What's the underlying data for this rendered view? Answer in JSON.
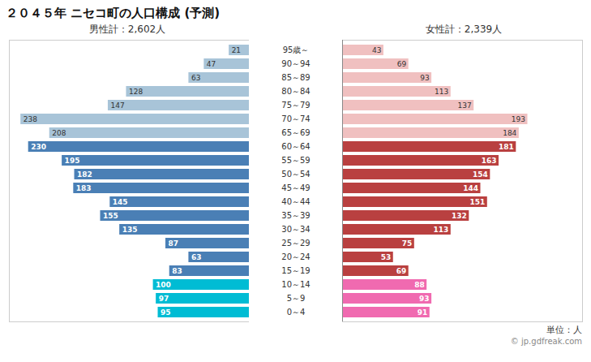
{
  "chart_data": {
    "type": "bar",
    "orientation": "horizontal",
    "title": "２０４５年 ニセコ町の人口構成 (予測)",
    "categories": [
      "95歳～",
      "90～94",
      "85～89",
      "80～84",
      "75～79",
      "70～74",
      "65～69",
      "60～64",
      "55～59",
      "50～54",
      "45～49",
      "40～44",
      "35～39",
      "30～34",
      "25～29",
      "20～24",
      "15～19",
      "10～14",
      "5～9",
      "0～4"
    ],
    "series": [
      {
        "name": "男性計：2,602人",
        "colors": [
          "#a8c4d8",
          "#a8c4d8",
          "#a8c4d8",
          "#a8c4d8",
          "#a8c4d8",
          "#a8c4d8",
          "#a8c4d8",
          "#4a7fb5",
          "#4a7fb5",
          "#4a7fb5",
          "#4a7fb5",
          "#4a7fb5",
          "#4a7fb5",
          "#4a7fb5",
          "#4a7fb5",
          "#4a7fb5",
          "#4a7fb5",
          "#00bcd4",
          "#00bcd4",
          "#00bcd4"
        ],
        "values": [
          21,
          47,
          63,
          128,
          147,
          238,
          208,
          230,
          195,
          182,
          183,
          145,
          155,
          135,
          87,
          63,
          83,
          100,
          97,
          95
        ]
      },
      {
        "name": "女性計：2,339人",
        "colors": [
          "#f0c0c0",
          "#f0c0c0",
          "#f0c0c0",
          "#f0c0c0",
          "#f0c0c0",
          "#f0c0c0",
          "#f0c0c0",
          "#b94040",
          "#b94040",
          "#b94040",
          "#b94040",
          "#b94040",
          "#b94040",
          "#b94040",
          "#b94040",
          "#b94040",
          "#b94040",
          "#f06ab0",
          "#f06ab0",
          "#f06ab0"
        ],
        "values": [
          43,
          69,
          93,
          113,
          137,
          193,
          184,
          181,
          163,
          154,
          144,
          151,
          132,
          113,
          75,
          53,
          69,
          88,
          93,
          91
        ]
      }
    ],
    "xlim": [
      0,
      250
    ],
    "tick_labels": "y",
    "data_labels": true,
    "annotations": [
      "単位：人",
      "© jp.gdfreak.com"
    ]
  }
}
